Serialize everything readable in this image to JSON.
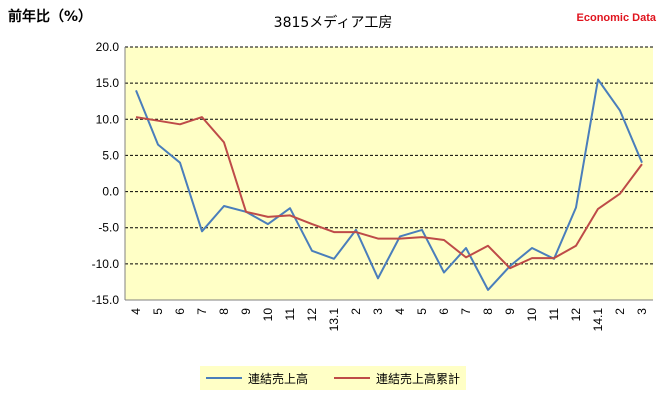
{
  "header": {
    "ylabel": "前年比（%）",
    "title": "3815メディア工房",
    "brand": "Economic Data"
  },
  "chart_data": {
    "type": "line",
    "categories": [
      "4",
      "5",
      "6",
      "7",
      "8",
      "9",
      "10",
      "11",
      "12",
      "13.1",
      "2",
      "3",
      "4",
      "5",
      "6",
      "7",
      "8",
      "9",
      "10",
      "11",
      "12",
      "14.1",
      "2",
      "3"
    ],
    "ylim": [
      -15.0,
      20.0
    ],
    "yticks": [
      "20.0",
      "15.0",
      "10.0",
      "5.0",
      "0.0",
      "-5.0",
      "-10.0",
      "-15.0"
    ],
    "ytick_values": [
      20,
      15,
      10,
      5,
      0,
      -5,
      -10,
      -15
    ],
    "grid": true,
    "legend_position": "bottom",
    "series": [
      {
        "name": "連結売上高",
        "color": "#4a7ebb",
        "values": [
          14.0,
          6.5,
          4.0,
          -5.5,
          -2.0,
          -2.8,
          -4.5,
          -2.3,
          -8.2,
          -9.3,
          -5.3,
          -12.0,
          -6.2,
          -5.3,
          -11.2,
          -7.8,
          -13.6,
          -10.3,
          -7.8,
          -9.3,
          -2.2,
          15.5,
          11.2,
          4.0
        ]
      },
      {
        "name": "連結売上高累計",
        "color": "#be4b48",
        "values": [
          10.3,
          9.8,
          9.3,
          10.3,
          6.8,
          -2.8,
          -3.5,
          -3.3,
          -4.5,
          -5.6,
          -5.6,
          -6.5,
          -6.5,
          -6.3,
          -6.7,
          -9.1,
          -7.5,
          -10.6,
          -9.2,
          -9.2,
          -7.5,
          -2.4,
          -0.3,
          3.8
        ]
      }
    ]
  }
}
